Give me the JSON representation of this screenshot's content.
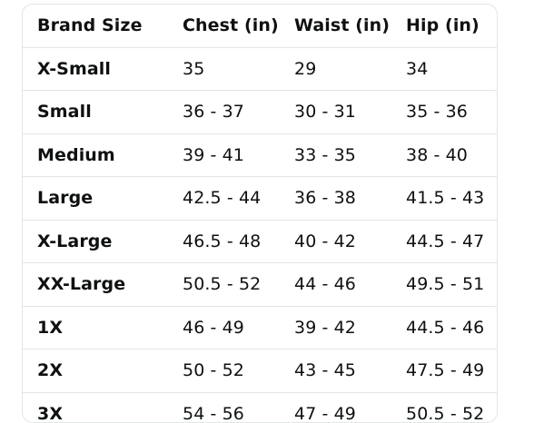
{
  "table": {
    "headers": [
      "Brand Size",
      "Chest (in)",
      "Waist (in)",
      "Hip (in)"
    ],
    "rows": [
      [
        "X-Small",
        "35",
        "29",
        "34"
      ],
      [
        "Small",
        "36 - 37",
        "30 - 31",
        "35 - 36"
      ],
      [
        "Medium",
        "39 - 41",
        "33 - 35",
        "38 - 40"
      ],
      [
        "Large",
        "42.5 - 44",
        "36 - 38",
        "41.5 - 43"
      ],
      [
        "X-Large",
        "46.5 - 48",
        "40 - 42",
        "44.5 - 47"
      ],
      [
        "XX-Large",
        "50.5 - 52",
        "44 - 46",
        "49.5 - 51"
      ],
      [
        "1X",
        "46 - 49",
        "39 - 42",
        "44.5 - 46"
      ],
      [
        "2X",
        "50 - 52",
        "43 - 45",
        "47.5 - 49"
      ],
      [
        "3X",
        "54 - 56",
        "47 - 49",
        "50.5 - 52"
      ]
    ]
  }
}
